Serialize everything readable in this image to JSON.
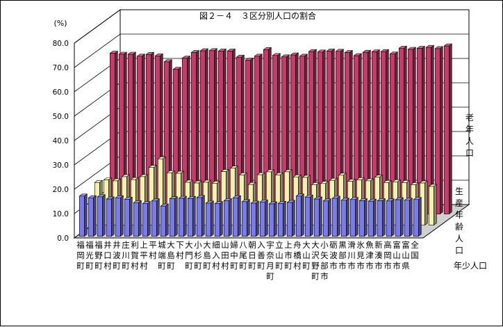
{
  "chart_data": {
    "type": "bar",
    "title": "図２－４　３区分別人口の割合",
    "ylabel": "(%)",
    "ylim": [
      0,
      80
    ],
    "yticks": [
      "0.0",
      "10.0",
      "20.0",
      "30.0",
      "40.0",
      "50.0",
      "60.0",
      "70.0",
      "80.0"
    ],
    "grid": true,
    "categories": [
      "福岡町",
      "福光町",
      "福野町",
      "井口村",
      "井波町",
      "庄川町",
      "利賀村",
      "上平村",
      "平村",
      "城端町",
      "大島町",
      "下村",
      "大門町",
      "小杉町",
      "大島町",
      "細入村",
      "山田村",
      "婦中町",
      "八尾町",
      "朝日町",
      "入善町",
      "宇奈月町",
      "立山町",
      "上市町",
      "舟橋村",
      "大山町",
      "大沢野町",
      "小矢部市",
      "砺波市",
      "黒部市",
      "滑川市",
      "氷見市",
      "魚津市",
      "新湊市",
      "高岡市",
      "富山市",
      "富山県",
      "全国"
    ],
    "category_labels": [
      "福岡町",
      "福光町",
      "福野町",
      "井口村",
      "井波町",
      "庄川町",
      "利賀村",
      "上平村",
      "平村",
      "城端町",
      "大島町",
      "下村",
      "大門町",
      "小杉町",
      "大島町",
      "細入村",
      "山田村",
      "婦中町",
      "八尾町",
      "朝日町",
      "入善町",
      "宇奈月町",
      "立山町",
      "上市町",
      "舟橋村",
      "大山町",
      "大沢野町",
      "小矢部市",
      "砺波市",
      "黒部市",
      "滑川市",
      "氷見市",
      "魚津市",
      "新湊市",
      "高岡市",
      "富山市",
      "富山県",
      "全国"
    ],
    "series": [
      {
        "name": "年少人口",
        "color": "#7b7bef",
        "values": [
          16.5,
          15.8,
          16.2,
          15.3,
          15.8,
          15.2,
          13.8,
          13.4,
          14.5,
          12.4,
          15.4,
          15.6,
          15.5,
          15.9,
          13.6,
          13.4,
          14.6,
          15.8,
          14.2,
          13.6,
          14.1,
          13.3,
          13.5,
          13.9,
          16.5,
          16.1,
          15.3,
          14.5,
          15.6,
          14.8,
          15.1,
          14.6,
          14.4,
          14.6,
          14.5,
          15.0,
          14.8,
          15.1
        ]
      },
      {
        "name": "生産年齢人口",
        "color": "#f5f0b0",
        "values": [
          17.5,
          18.6,
          18.2,
          19.9,
          18.7,
          19.9,
          23.7,
          27.2,
          21.5,
          21.3,
          17.6,
          17.3,
          17.6,
          17.2,
          22.0,
          23.4,
          20.6,
          16.7,
          20.7,
          21.9,
          20.6,
          21.9,
          19.8,
          19.6,
          16.6,
          17.1,
          18.4,
          20.5,
          18.0,
          18.6,
          18.2,
          19.7,
          17.5,
          17.8,
          17.5,
          16.6,
          17.3,
          15.9
        ]
      },
      {
        "name": "老年人口",
        "color": "#c83a6a",
        "values": [
          66.0,
          65.6,
          65.6,
          64.8,
          65.5,
          64.9,
          62.5,
          59.4,
          64.0,
          66.3,
          67.0,
          67.1,
          66.9,
          66.9,
          64.4,
          63.2,
          64.8,
          67.5,
          65.1,
          64.5,
          65.3,
          64.8,
          66.7,
          66.5,
          66.9,
          66.8,
          66.3,
          65.0,
          66.4,
          66.6,
          66.7,
          65.7,
          68.1,
          67.6,
          68.0,
          68.4,
          67.9,
          69.0
        ]
      }
    ],
    "legend_placement": "right"
  }
}
